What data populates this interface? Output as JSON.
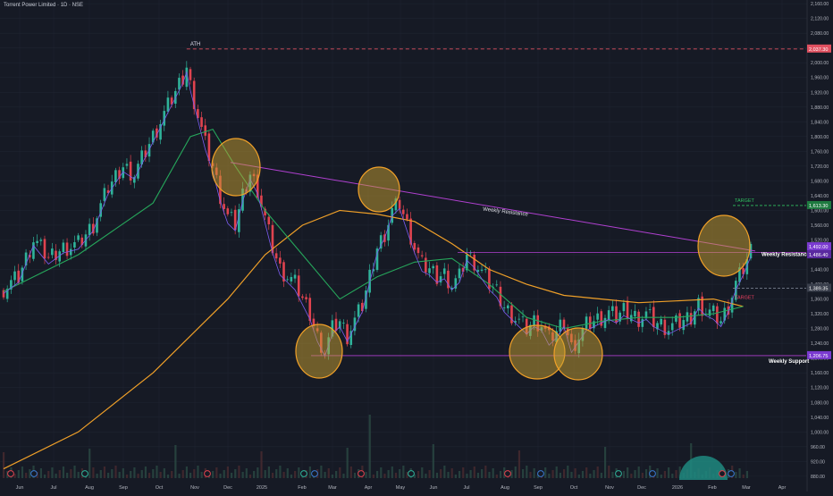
{
  "header": {
    "title": "Torrent Power Limited · 1D · NSE"
  },
  "colors": {
    "background": "#161a25",
    "grid": "#1f2431",
    "up_candle": "#2fb39a",
    "down_candle": "#e0434f",
    "ema_slow": "#f0a028",
    "ema_mid": "#26a65b",
    "ema_fast": "#7c5cf0",
    "trendline": "#b040d0",
    "circle_fill": "#c8a03280",
    "circle_stroke": "#f0a028",
    "target_green": "#30c060",
    "target_red": "#f04060",
    "ath_line": "#e05060",
    "price_tag": "#7a3ad0",
    "text": "#b2b5be"
  },
  "chart_data": {
    "type": "candlestick",
    "title": "Torrent Power Limited · 1D · NSE",
    "x_ticks": [
      "Jun",
      "Jul",
      "Aug",
      "Sep",
      "Oct",
      "Nov",
      "Dec",
      "2025",
      "Feb",
      "Mar",
      "Apr",
      "May",
      "Jun",
      "Jul",
      "Aug",
      "Sep",
      "Oct",
      "Nov",
      "Dec",
      "2026",
      "Feb",
      "Mar",
      "Apr"
    ],
    "y_ticks": [
      880,
      920,
      960,
      1000,
      1040,
      1080,
      1120,
      1160,
      1200,
      1240,
      1280,
      1320,
      1360,
      1400,
      1440,
      1480,
      1520,
      1560,
      1600,
      1640,
      1680,
      1720,
      1760,
      1800,
      1840,
      1880,
      1920,
      1960,
      2000,
      2040,
      2080,
      2120,
      2160
    ],
    "y_tick_labels": [
      "880.00",
      "920.00",
      "960.00",
      "1,000.00",
      "1,040.00",
      "1,080.00",
      "1,120.00",
      "1,160.00",
      "1,200.00",
      "1,240.00",
      "1,280.00",
      "1,320.00",
      "1,360.00",
      "1,400.00",
      "1,440.00",
      "1,480.00",
      "1,520.00",
      "1,560.00",
      "1,600.00",
      "1,640.00",
      "1,680.00",
      "1,720.00",
      "1,760.00",
      "1,800.00",
      "1,840.00",
      "1,880.00",
      "1,920.00",
      "1,960.00",
      "2,000.00",
      "2,040.00",
      "2,080.00",
      "2,120.00",
      "2,160.00"
    ],
    "ylim": [
      870,
      2170
    ],
    "price_path": [
      [
        0,
        1390
      ],
      [
        4,
        1420
      ],
      [
        8,
        1520
      ],
      [
        12,
        1470
      ],
      [
        16,
        1500
      ],
      [
        20,
        1510
      ],
      [
        24,
        1560
      ],
      [
        28,
        1660
      ],
      [
        32,
        1720
      ],
      [
        35,
        1700
      ],
      [
        38,
        1760
      ],
      [
        41,
        1820
      ],
      [
        44,
        1880
      ],
      [
        46,
        1920
      ],
      [
        48,
        1960
      ],
      [
        49,
        1990
      ],
      [
        50,
        1940
      ],
      [
        52,
        1860
      ],
      [
        54,
        1780
      ],
      [
        56,
        1720
      ],
      [
        58,
        1640
      ],
      [
        60,
        1580
      ],
      [
        62,
        1560
      ],
      [
        64,
        1640
      ],
      [
        66,
        1700
      ],
      [
        68,
        1660
      ],
      [
        70,
        1580
      ],
      [
        72,
        1500
      ],
      [
        74,
        1440
      ],
      [
        76,
        1420
      ],
      [
        78,
        1400
      ],
      [
        80,
        1360
      ],
      [
        82,
        1320
      ],
      [
        84,
        1260
      ],
      [
        86,
        1220
      ],
      [
        88,
        1280
      ],
      [
        90,
        1300
      ],
      [
        92,
        1260
      ],
      [
        94,
        1300
      ],
      [
        96,
        1340
      ],
      [
        98,
        1420
      ],
      [
        100,
        1500
      ],
      [
        102,
        1540
      ],
      [
        104,
        1600
      ],
      [
        106,
        1620
      ],
      [
        108,
        1560
      ],
      [
        110,
        1500
      ],
      [
        112,
        1450
      ],
      [
        114,
        1440
      ],
      [
        116,
        1420
      ],
      [
        118,
        1430
      ],
      [
        120,
        1400
      ],
      [
        122,
        1420
      ],
      [
        124,
        1480
      ],
      [
        126,
        1460
      ],
      [
        128,
        1430
      ],
      [
        130,
        1400
      ],
      [
        132,
        1380
      ],
      [
        134,
        1340
      ],
      [
        136,
        1320
      ],
      [
        138,
        1300
      ],
      [
        140,
        1280
      ],
      [
        142,
        1300
      ],
      [
        144,
        1290
      ],
      [
        146,
        1250
      ],
      [
        148,
        1270
      ],
      [
        150,
        1300
      ],
      [
        152,
        1230
      ],
      [
        154,
        1260
      ],
      [
        156,
        1290
      ],
      [
        158,
        1300
      ],
      [
        160,
        1310
      ],
      [
        162,
        1320
      ],
      [
        164,
        1310
      ],
      [
        166,
        1330
      ],
      [
        168,
        1320
      ],
      [
        170,
        1310
      ],
      [
        172,
        1320
      ],
      [
        174,
        1300
      ],
      [
        176,
        1290
      ],
      [
        178,
        1280
      ],
      [
        180,
        1290
      ],
      [
        182,
        1300
      ],
      [
        184,
        1310
      ],
      [
        186,
        1350
      ],
      [
        188,
        1330
      ],
      [
        190,
        1320
      ],
      [
        192,
        1300
      ],
      [
        194,
        1340
      ],
      [
        196,
        1400
      ],
      [
        198,
        1440
      ],
      [
        200,
        1490
      ]
    ],
    "ema200_path": [
      [
        0,
        900
      ],
      [
        20,
        1000
      ],
      [
        40,
        1160
      ],
      [
        60,
        1360
      ],
      [
        70,
        1480
      ],
      [
        80,
        1560
      ],
      [
        90,
        1600
      ],
      [
        100,
        1590
      ],
      [
        110,
        1570
      ],
      [
        120,
        1510
      ],
      [
        130,
        1440
      ],
      [
        140,
        1400
      ],
      [
        150,
        1370
      ],
      [
        160,
        1360
      ],
      [
        170,
        1350
      ],
      [
        180,
        1355
      ],
      [
        190,
        1360
      ],
      [
        198,
        1340
      ]
    ],
    "ema50_path": [
      [
        0,
        1380
      ],
      [
        20,
        1480
      ],
      [
        40,
        1620
      ],
      [
        50,
        1800
      ],
      [
        56,
        1820
      ],
      [
        62,
        1720
      ],
      [
        70,
        1600
      ],
      [
        80,
        1480
      ],
      [
        90,
        1360
      ],
      [
        100,
        1420
      ],
      [
        110,
        1460
      ],
      [
        120,
        1470
      ],
      [
        130,
        1400
      ],
      [
        140,
        1310
      ],
      [
        150,
        1280
      ],
      [
        160,
        1300
      ],
      [
        170,
        1310
      ],
      [
        180,
        1310
      ],
      [
        190,
        1320
      ],
      [
        198,
        1340
      ]
    ],
    "annotations": {
      "ath_label": "ATH",
      "ath_price": "2,037.30",
      "weekly_resistance_label": "Weekly Resistance",
      "weekly_support_label": "Weekly Support",
      "target_upper_label": "TARGET",
      "target_lower_label": "TARGET",
      "target_upper_price": "1,613.30",
      "target_lower_price": "1,389.35",
      "price_tag_1": "1,492.00",
      "price_tag_2": "1,486.40",
      "support_tag": "1,206.75"
    },
    "levels": {
      "ath": 2037.3,
      "target_upper": 1613.3,
      "target_lower": 1389.35,
      "resistance": 1486.4,
      "support": 1206.75,
      "current": 1492.0
    },
    "grid": true
  }
}
